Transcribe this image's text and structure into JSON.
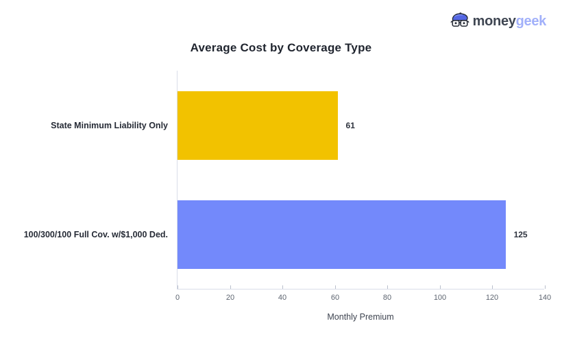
{
  "header": {
    "logo": {
      "icon": "geek-face-icon",
      "text_primary": "money",
      "text_secondary": "geek",
      "color_primary": "#3f4652",
      "color_secondary": "#a1b0fa",
      "icon_hat_color": "#5466e3",
      "icon_outline_color": "#262b36"
    }
  },
  "chart_data": {
    "type": "bar",
    "orientation": "horizontal",
    "title": "Average Cost by Coverage Type",
    "categories": [
      "State Minimum Liability Only",
      "100/300/100 Full Cov. w/$1,000 Ded."
    ],
    "values": [
      61,
      125
    ],
    "value_labels": [
      "61",
      "125"
    ],
    "bar_colors": [
      "#f2c200",
      "#7389fb"
    ],
    "xlabel": "Monthly Premium",
    "ylabel": "",
    "xlim": [
      0,
      140
    ],
    "xticks": [
      0,
      20,
      40,
      60,
      80,
      100,
      120,
      140
    ],
    "grid": false,
    "legend": "none",
    "axis_line_color": "#d9dde9",
    "tick_mark_color": "#b9bfcc",
    "tick_label_color": "#5d6470"
  }
}
